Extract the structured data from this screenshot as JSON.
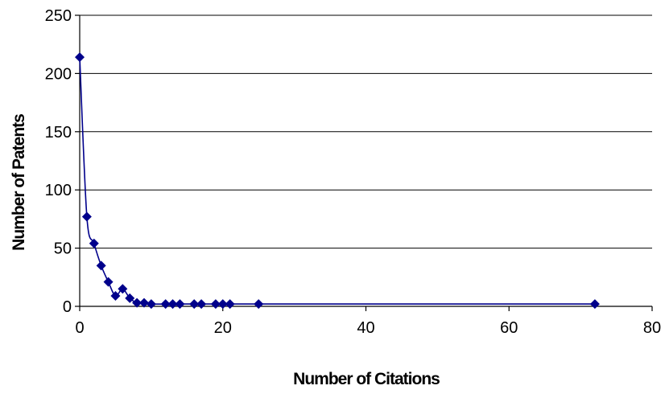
{
  "chart_data": {
    "type": "scatter",
    "title": "",
    "xlabel": "Number of Citations",
    "ylabel": "Number of Patents",
    "xlim": [
      0,
      80
    ],
    "ylim": [
      0,
      250
    ],
    "xticks": [
      0,
      20,
      40,
      60,
      80
    ],
    "yticks": [
      0,
      50,
      100,
      150,
      200,
      250
    ],
    "grid": "horizontal",
    "legend": "none",
    "series": [
      {
        "color": "#00008B",
        "marker": "diamond",
        "line": "smooth",
        "x": [
          0,
          1,
          2,
          3,
          4,
          5,
          6,
          7,
          8,
          9,
          10,
          12,
          13,
          14,
          16,
          17,
          19,
          20,
          21,
          25,
          72
        ],
        "y": [
          214,
          77,
          54,
          35,
          21,
          9,
          15,
          7,
          3,
          3,
          2,
          2,
          2,
          2,
          2,
          2,
          2,
          2,
          2,
          2,
          2
        ]
      }
    ]
  }
}
